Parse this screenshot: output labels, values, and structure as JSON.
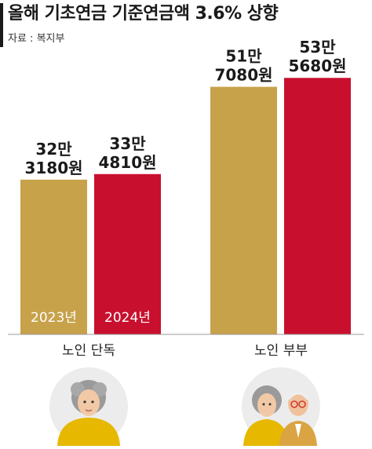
{
  "title": "올해 기초연금 기준연금액 3.6% 상향",
  "source": "자료 : 복지부",
  "chart_data": {
    "type": "bar",
    "categories": [
      "노인 단독",
      "노인 부부"
    ],
    "series": [
      {
        "name": "2023년",
        "color": "#c8a24a",
        "values": [
          323180,
          517080
        ],
        "labels": [
          [
            "32만",
            "3180원"
          ],
          [
            "51만",
            "7080원"
          ]
        ]
      },
      {
        "name": "2024년",
        "color": "#c8102e",
        "values": [
          334810,
          535680
        ],
        "labels": [
          [
            "33만",
            "4810원"
          ],
          [
            "53만",
            "5680원"
          ]
        ]
      }
    ],
    "unit": "원",
    "ylim": [
      0,
      600000
    ],
    "grid": false,
    "legend": "inside-bars"
  },
  "illustrations": [
    {
      "category": "노인 단독",
      "icon": "elderly-woman-icon"
    },
    {
      "category": "노인 부부",
      "icon": "elderly-couple-icon"
    }
  ]
}
